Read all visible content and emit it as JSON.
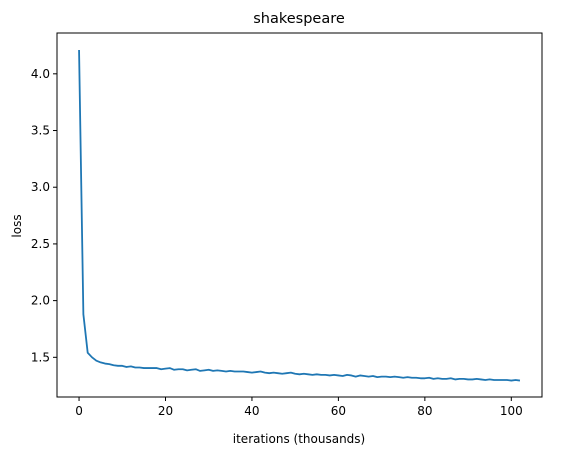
{
  "chart_data": {
    "type": "line",
    "title": "shakespeare",
    "xlabel": "iterations (thousands)",
    "ylabel": "loss",
    "xlim": [
      -5.1,
      107.1
    ],
    "ylim": [
      1.15,
      4.36
    ],
    "grid": false,
    "xticks": [
      {
        "value": 0,
        "label": "0"
      },
      {
        "value": 20,
        "label": "20"
      },
      {
        "value": 40,
        "label": "40"
      },
      {
        "value": 60,
        "label": "60"
      },
      {
        "value": 80,
        "label": "80"
      },
      {
        "value": 100,
        "label": "100"
      }
    ],
    "yticks": [
      {
        "value": 1.5,
        "label": "1.5"
      },
      {
        "value": 2.0,
        "label": "2.0"
      },
      {
        "value": 2.5,
        "label": "2.5"
      },
      {
        "value": 3.0,
        "label": "3.0"
      },
      {
        "value": 3.5,
        "label": "3.5"
      },
      {
        "value": 4.0,
        "label": "4.0"
      }
    ],
    "series": [
      {
        "color": "#1f77b4",
        "x": [
          0,
          1,
          2,
          3,
          4,
          5,
          6,
          7,
          8,
          9,
          10,
          11,
          12,
          13,
          14,
          15,
          16,
          17,
          18,
          19,
          20,
          21,
          22,
          23,
          24,
          25,
          26,
          27,
          28,
          29,
          30,
          31,
          32,
          33,
          34,
          35,
          36,
          37,
          38,
          39,
          40,
          41,
          42,
          43,
          44,
          45,
          46,
          47,
          48,
          49,
          50,
          51,
          52,
          53,
          54,
          55,
          56,
          57,
          58,
          59,
          60,
          61,
          62,
          63,
          64,
          65,
          66,
          67,
          68,
          69,
          70,
          71,
          72,
          73,
          74,
          75,
          76,
          77,
          78,
          79,
          80,
          81,
          82,
          83,
          84,
          85,
          86,
          87,
          88,
          89,
          90,
          91,
          92,
          93,
          94,
          95,
          96,
          97,
          98,
          99,
          100,
          101,
          102
        ],
        "y": [
          4.21,
          1.88,
          1.54,
          1.5,
          1.47,
          1.455,
          1.445,
          1.44,
          1.43,
          1.425,
          1.425,
          1.415,
          1.42,
          1.41,
          1.41,
          1.405,
          1.405,
          1.405,
          1.405,
          1.395,
          1.4,
          1.405,
          1.39,
          1.395,
          1.395,
          1.385,
          1.39,
          1.395,
          1.38,
          1.385,
          1.39,
          1.38,
          1.385,
          1.38,
          1.375,
          1.38,
          1.375,
          1.375,
          1.375,
          1.37,
          1.365,
          1.37,
          1.375,
          1.365,
          1.36,
          1.365,
          1.36,
          1.355,
          1.36,
          1.365,
          1.355,
          1.35,
          1.355,
          1.35,
          1.345,
          1.35,
          1.345,
          1.345,
          1.34,
          1.345,
          1.34,
          1.335,
          1.345,
          1.34,
          1.33,
          1.34,
          1.335,
          1.33,
          1.335,
          1.325,
          1.33,
          1.33,
          1.325,
          1.33,
          1.325,
          1.32,
          1.325,
          1.32,
          1.32,
          1.315,
          1.315,
          1.32,
          1.31,
          1.315,
          1.31,
          1.31,
          1.315,
          1.305,
          1.31,
          1.31,
          1.305,
          1.305,
          1.31,
          1.305,
          1.3,
          1.305,
          1.3,
          1.3,
          1.3,
          1.3,
          1.295,
          1.3,
          1.295
        ]
      }
    ]
  }
}
